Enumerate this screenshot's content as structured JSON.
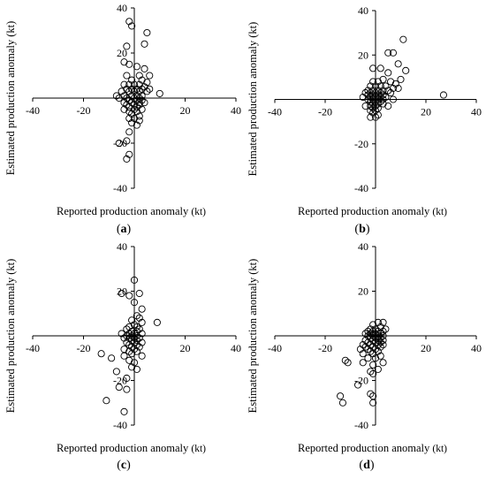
{
  "chart_data": [
    {
      "panel": "a",
      "type": "scatter",
      "xlabel": "Reported production anomaly",
      "xunit": "(kt)",
      "ylabel": "Estimated production anomaly (kt)",
      "xlim": [
        -40,
        40
      ],
      "ylim": [
        -40,
        40
      ],
      "xticks": [
        -40,
        -20,
        20,
        40
      ],
      "yticks": [
        40,
        20,
        -20,
        -40
      ],
      "points": [
        [
          -2,
          34
        ],
        [
          -1,
          32
        ],
        [
          5,
          29
        ],
        [
          -3,
          23
        ],
        [
          4,
          24
        ],
        [
          -4,
          16
        ],
        [
          -2,
          15
        ],
        [
          1,
          14
        ],
        [
          4,
          13
        ],
        [
          -3,
          10
        ],
        [
          2,
          10
        ],
        [
          6,
          10
        ],
        [
          -1,
          8
        ],
        [
          3,
          8
        ],
        [
          5,
          7
        ],
        [
          -4,
          6
        ],
        [
          -2,
          6
        ],
        [
          0,
          6
        ],
        [
          2,
          6
        ],
        [
          4,
          5
        ],
        [
          -3,
          4
        ],
        [
          -1,
          4
        ],
        [
          1,
          4
        ],
        [
          3,
          4
        ],
        [
          6,
          4
        ],
        [
          -5,
          3
        ],
        [
          -2,
          3
        ],
        [
          0,
          3
        ],
        [
          2,
          3
        ],
        [
          5,
          3
        ],
        [
          10,
          2
        ],
        [
          -7,
          1
        ],
        [
          -4,
          1
        ],
        [
          -1,
          1
        ],
        [
          1,
          1
        ],
        [
          3,
          1
        ],
        [
          -6,
          0
        ],
        [
          -3,
          0
        ],
        [
          0,
          0
        ],
        [
          2,
          0
        ],
        [
          -2,
          -1
        ],
        [
          1,
          -1
        ],
        [
          3,
          -1
        ],
        [
          -4,
          -2
        ],
        [
          -1,
          -2
        ],
        [
          2,
          -2
        ],
        [
          4,
          -2
        ],
        [
          -3,
          -3
        ],
        [
          0,
          -3
        ],
        [
          2,
          -3
        ],
        [
          -2,
          -4
        ],
        [
          1,
          -4
        ],
        [
          -4,
          -5
        ],
        [
          0,
          -5
        ],
        [
          3,
          -5
        ],
        [
          -2,
          -6
        ],
        [
          1,
          -6
        ],
        [
          -1,
          -7
        ],
        [
          2,
          -8
        ],
        [
          0,
          -9
        ],
        [
          -2,
          -9
        ],
        [
          2,
          -10
        ],
        [
          -1,
          -11
        ],
        [
          1,
          -12
        ],
        [
          -2,
          -15
        ],
        [
          -3,
          -19
        ],
        [
          -6,
          -20
        ],
        [
          -2,
          -25
        ],
        [
          -3,
          -27
        ]
      ]
    },
    {
      "panel": "b",
      "type": "scatter",
      "xlabel": "Reported production anomaly",
      "xunit": "(kt)",
      "ylabel": "Estimated production anomaly (kt)",
      "xlim": [
        -40,
        40
      ],
      "ylim": [
        -40,
        40
      ],
      "xticks": [
        -40,
        -20,
        20,
        40
      ],
      "yticks": [
        40,
        20,
        -20,
        -40
      ],
      "points": [
        [
          11,
          27
        ],
        [
          5,
          21
        ],
        [
          7,
          21
        ],
        [
          9,
          16
        ],
        [
          -1,
          14
        ],
        [
          2,
          14
        ],
        [
          12,
          13
        ],
        [
          5,
          12
        ],
        [
          10,
          9
        ],
        [
          3,
          9
        ],
        [
          -1,
          8
        ],
        [
          1,
          8
        ],
        [
          6,
          8
        ],
        [
          8,
          7
        ],
        [
          -2,
          6
        ],
        [
          0,
          6
        ],
        [
          2,
          6
        ],
        [
          4,
          6
        ],
        [
          7,
          5
        ],
        [
          9,
          5
        ],
        [
          -3,
          4
        ],
        [
          -1,
          4
        ],
        [
          1,
          4
        ],
        [
          3,
          4
        ],
        [
          5,
          4
        ],
        [
          -4,
          3
        ],
        [
          -2,
          3
        ],
        [
          0,
          3
        ],
        [
          2,
          3
        ],
        [
          6,
          3
        ],
        [
          27,
          2
        ],
        [
          -3,
          2
        ],
        [
          -1,
          2
        ],
        [
          1,
          2
        ],
        [
          3,
          2
        ],
        [
          -5,
          1
        ],
        [
          -2,
          1
        ],
        [
          0,
          1
        ],
        [
          2,
          1
        ],
        [
          4,
          1
        ],
        [
          -3,
          0
        ],
        [
          -1,
          0
        ],
        [
          1,
          0
        ],
        [
          3,
          0
        ],
        [
          7,
          0
        ],
        [
          -2,
          -1
        ],
        [
          0,
          -1
        ],
        [
          2,
          -1
        ],
        [
          -1,
          -2
        ],
        [
          1,
          -2
        ],
        [
          3,
          -2
        ],
        [
          -4,
          -3
        ],
        [
          -2,
          -3
        ],
        [
          0,
          -3
        ],
        [
          5,
          -3
        ],
        [
          -1,
          -4
        ],
        [
          1,
          -4
        ],
        [
          -2,
          -5
        ],
        [
          0,
          -5
        ],
        [
          -1,
          -6
        ],
        [
          1,
          -7
        ],
        [
          -2,
          -8
        ],
        [
          0,
          -8
        ]
      ]
    },
    {
      "panel": "c",
      "type": "scatter",
      "xlabel": "Reported production anomaly",
      "xunit": "(kt)",
      "ylabel": "Estimated production anomaly (kt)",
      "xlim": [
        -40,
        40
      ],
      "ylim": [
        -40,
        40
      ],
      "xticks": [
        -40,
        -20,
        20,
        40
      ],
      "yticks": [
        40,
        20,
        -20,
        -40
      ],
      "points": [
        [
          0,
          25
        ],
        [
          -5,
          19
        ],
        [
          2,
          19
        ],
        [
          -2,
          18
        ],
        [
          0,
          15
        ],
        [
          3,
          12
        ],
        [
          1,
          9
        ],
        [
          2,
          8
        ],
        [
          -1,
          7
        ],
        [
          3,
          6
        ],
        [
          9,
          6
        ],
        [
          0,
          5
        ],
        [
          -2,
          4
        ],
        [
          1,
          4
        ],
        [
          -3,
          3
        ],
        [
          2,
          3
        ],
        [
          -1,
          2
        ],
        [
          1,
          2
        ],
        [
          -5,
          1
        ],
        [
          -2,
          1
        ],
        [
          0,
          1
        ],
        [
          3,
          1
        ],
        [
          -3,
          0
        ],
        [
          -1,
          0
        ],
        [
          1,
          0
        ],
        [
          -4,
          -1
        ],
        [
          -2,
          -1
        ],
        [
          0,
          -1
        ],
        [
          2,
          -1
        ],
        [
          -1,
          -2
        ],
        [
          1,
          -2
        ],
        [
          -3,
          -3
        ],
        [
          0,
          -3
        ],
        [
          3,
          -3
        ],
        [
          -2,
          -4
        ],
        [
          1,
          -4
        ],
        [
          -1,
          -5
        ],
        [
          2,
          -5
        ],
        [
          -4,
          -6
        ],
        [
          0,
          -6
        ],
        [
          -2,
          -7
        ],
        [
          1,
          -7
        ],
        [
          -1,
          -8
        ],
        [
          -4,
          -9
        ],
        [
          3,
          -9
        ],
        [
          -13,
          -8
        ],
        [
          -9,
          -10
        ],
        [
          -2,
          -11
        ],
        [
          0,
          -12
        ],
        [
          -1,
          -14
        ],
        [
          1,
          -15
        ],
        [
          -7,
          -16
        ],
        [
          -3,
          -19
        ],
        [
          -6,
          -23
        ],
        [
          -3,
          -24
        ],
        [
          -11,
          -29
        ],
        [
          -4,
          -34
        ]
      ]
    },
    {
      "panel": "d",
      "type": "scatter",
      "xlabel": "Reported production anomaly",
      "xunit": "(kt)",
      "ylabel": "Estimated production anomaly (kt)",
      "xlim": [
        -40,
        40
      ],
      "ylim": [
        -40,
        40
      ],
      "xticks": [
        -40,
        -20,
        20,
        40
      ],
      "yticks": [
        40,
        20,
        -20,
        -40
      ],
      "points": [
        [
          1,
          6
        ],
        [
          -1,
          5
        ],
        [
          3,
          6
        ],
        [
          2,
          4
        ],
        [
          -2,
          3
        ],
        [
          0,
          3
        ],
        [
          4,
          3
        ],
        [
          -3,
          2
        ],
        [
          -1,
          2
        ],
        [
          1,
          2
        ],
        [
          3,
          2
        ],
        [
          -4,
          1
        ],
        [
          -2,
          1
        ],
        [
          0,
          1
        ],
        [
          2,
          1
        ],
        [
          -3,
          0
        ],
        [
          -1,
          0
        ],
        [
          1,
          0
        ],
        [
          3,
          0
        ],
        [
          -2,
          -1
        ],
        [
          0,
          -1
        ],
        [
          2,
          -1
        ],
        [
          -4,
          -2
        ],
        [
          -1,
          -2
        ],
        [
          1,
          -2
        ],
        [
          3,
          -2
        ],
        [
          -3,
          -3
        ],
        [
          0,
          -3
        ],
        [
          2,
          -3
        ],
        [
          -5,
          -4
        ],
        [
          -2,
          -4
        ],
        [
          1,
          -4
        ],
        [
          3,
          -4
        ],
        [
          -4,
          -5
        ],
        [
          -1,
          -5
        ],
        [
          2,
          -5
        ],
        [
          -6,
          -6
        ],
        [
          -3,
          -6
        ],
        [
          0,
          -6
        ],
        [
          -2,
          -7
        ],
        [
          1,
          -7
        ],
        [
          -5,
          -8
        ],
        [
          -1,
          -8
        ],
        [
          2,
          -9
        ],
        [
          -3,
          -10
        ],
        [
          0,
          -10
        ],
        [
          -12,
          -11
        ],
        [
          -11,
          -12
        ],
        [
          -5,
          -12
        ],
        [
          -1,
          -13
        ],
        [
          3,
          -12
        ],
        [
          1,
          -15
        ],
        [
          -2,
          -16
        ],
        [
          -1,
          -17
        ],
        [
          -7,
          -22
        ],
        [
          -2,
          -26
        ],
        [
          -1,
          -27
        ],
        [
          -14,
          -27
        ],
        [
          -13,
          -30
        ],
        [
          -1,
          -30
        ]
      ]
    }
  ]
}
